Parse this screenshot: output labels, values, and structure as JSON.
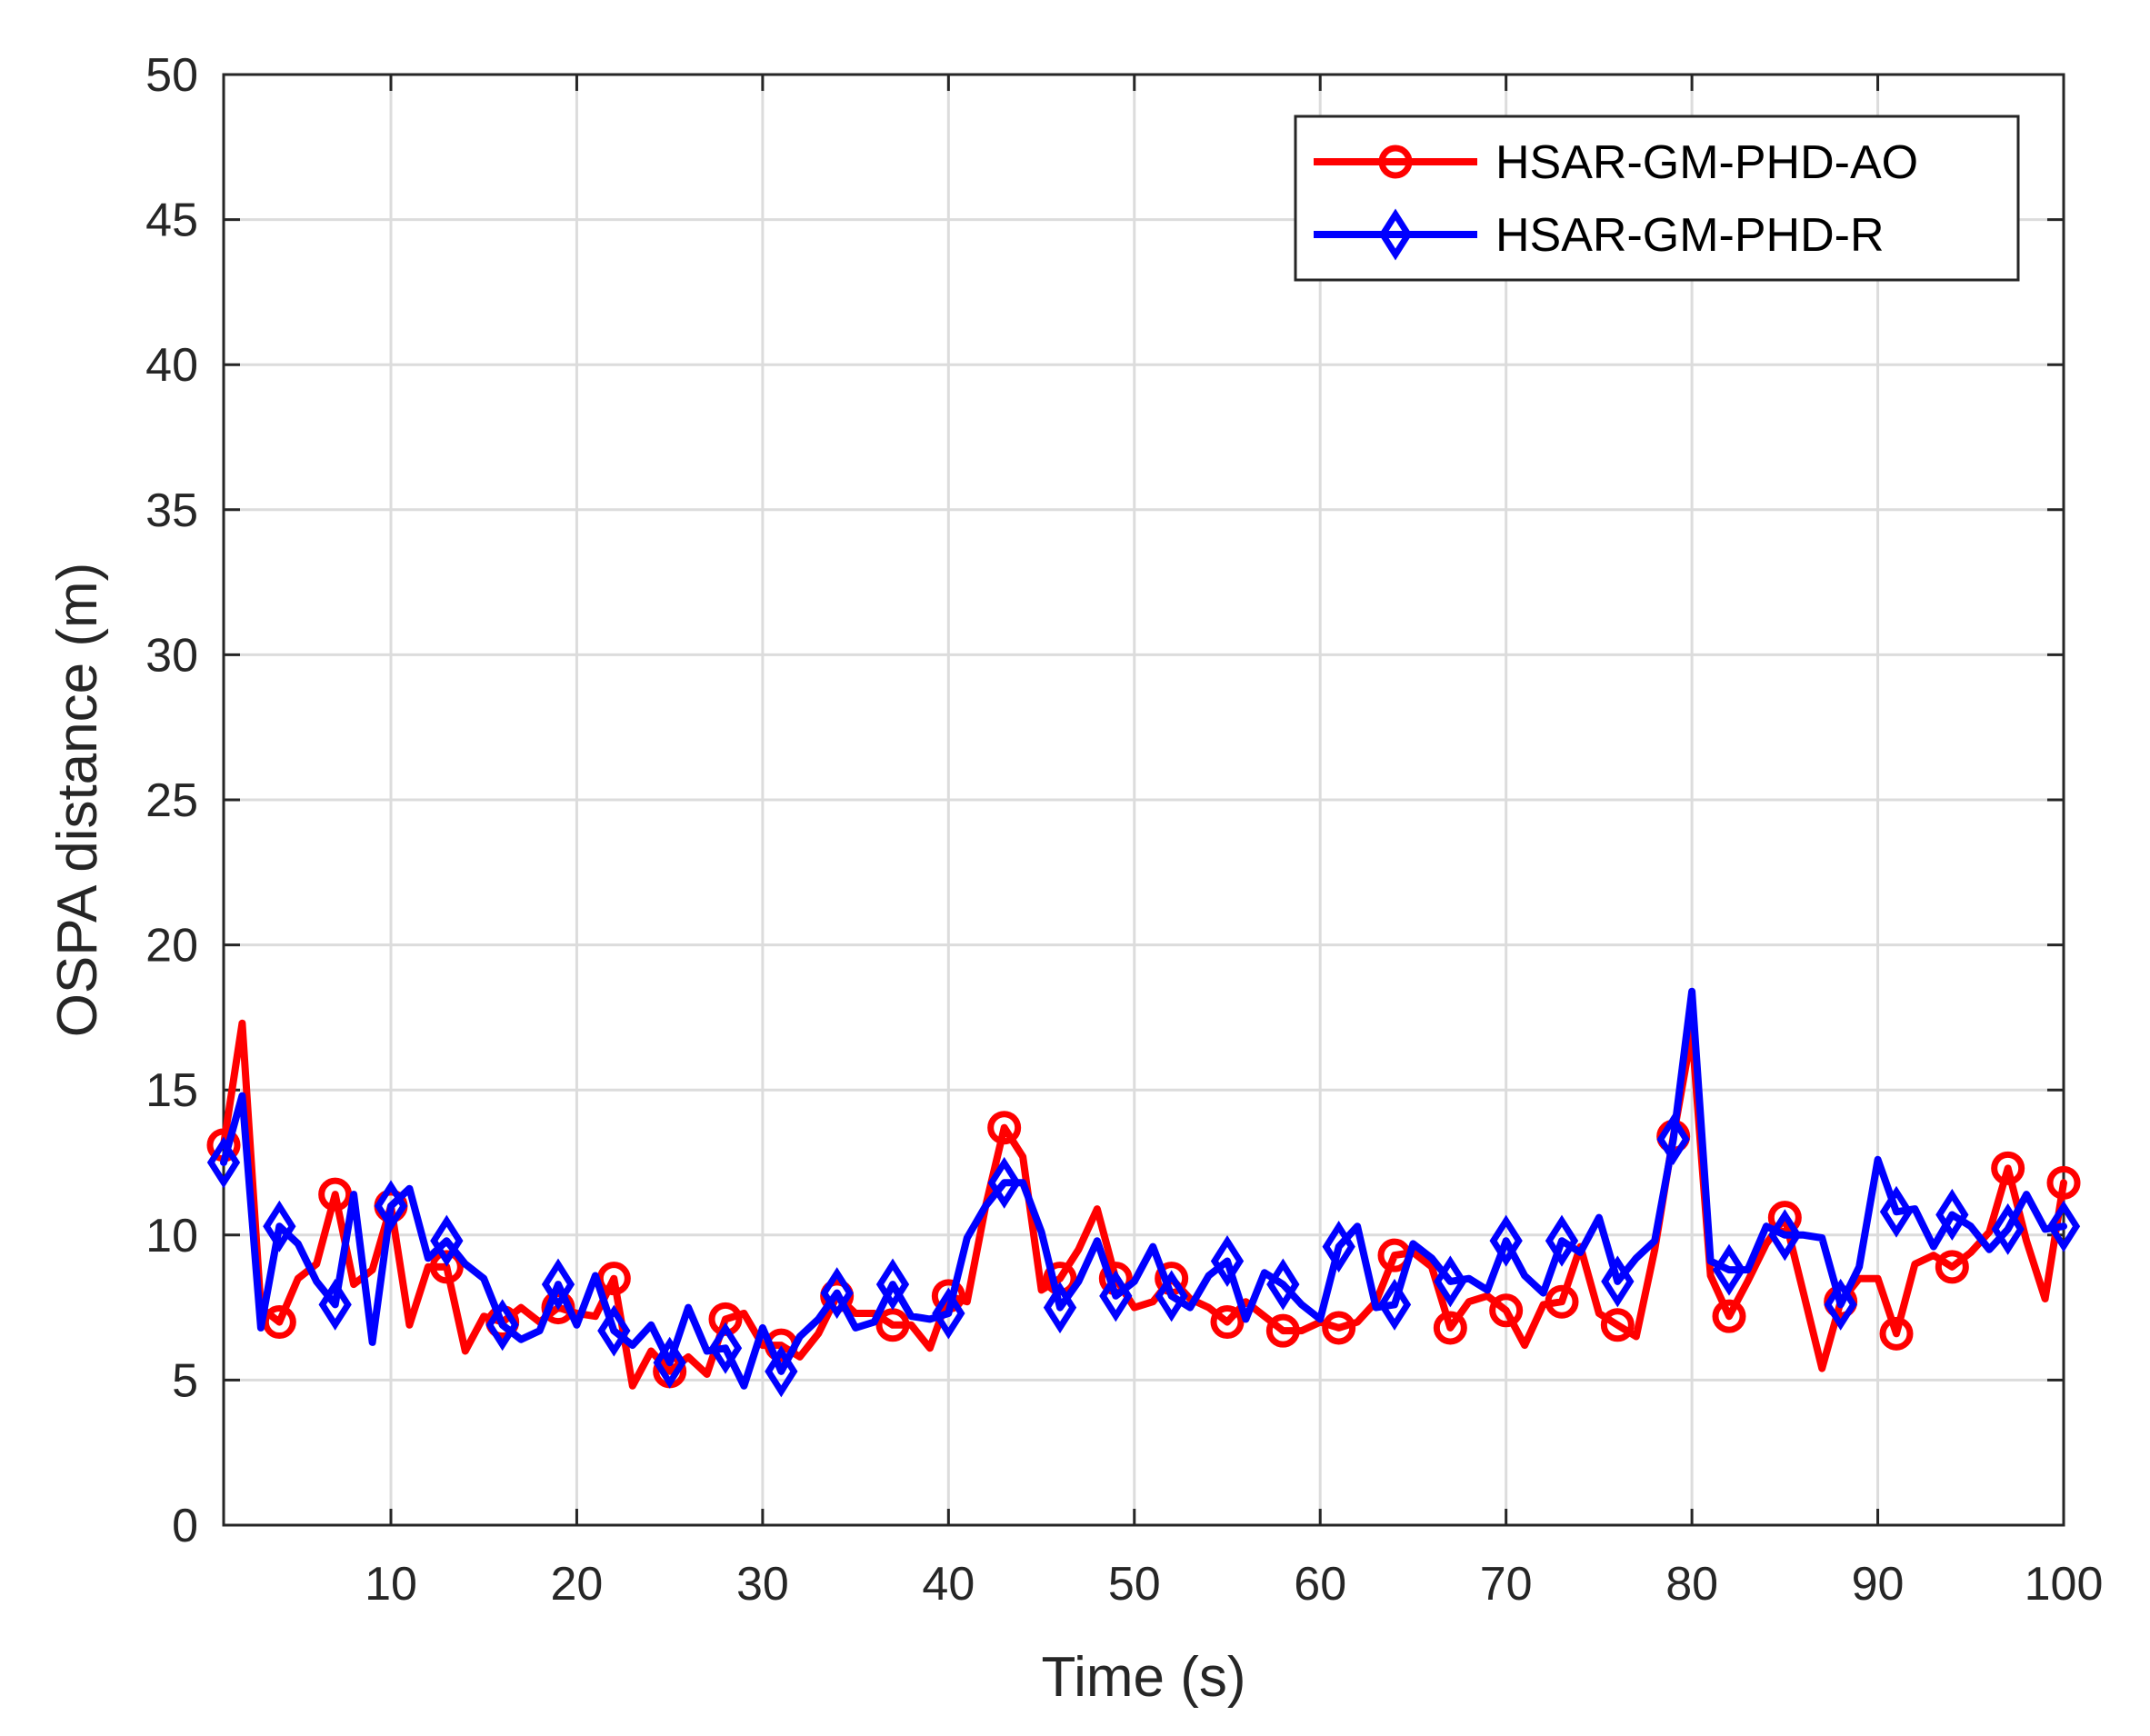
{
  "chart_data": {
    "type": "line",
    "title": "",
    "xlabel": "Time (s)",
    "ylabel": "OSPA distance (m)",
    "xlim": [
      1,
      100
    ],
    "ylim": [
      0,
      50
    ],
    "xticks": [
      10,
      20,
      30,
      40,
      50,
      60,
      70,
      80,
      90,
      100
    ],
    "yticks": [
      0,
      5,
      10,
      15,
      20,
      25,
      30,
      35,
      40,
      45,
      50
    ],
    "grid": true,
    "legend_position": "top-right",
    "x": [
      1,
      2,
      3,
      4,
      5,
      6,
      7,
      8,
      9,
      10,
      11,
      12,
      13,
      14,
      15,
      16,
      17,
      18,
      19,
      20,
      21,
      22,
      23,
      24,
      25,
      26,
      27,
      28,
      29,
      30,
      31,
      32,
      33,
      34,
      35,
      36,
      37,
      38,
      39,
      40,
      41,
      42,
      43,
      44,
      45,
      46,
      47,
      48,
      49,
      50,
      51,
      52,
      53,
      54,
      55,
      56,
      57,
      58,
      59,
      60,
      61,
      62,
      63,
      64,
      65,
      66,
      67,
      68,
      69,
      70,
      71,
      72,
      73,
      74,
      75,
      76,
      77,
      78,
      79,
      80,
      81,
      82,
      83,
      84,
      85,
      86,
      87,
      88,
      89,
      90,
      91,
      92,
      93,
      94,
      95,
      96,
      97,
      98,
      99,
      100
    ],
    "series": [
      {
        "name": "HSAR-GM-PHD-AO",
        "color": "#ff0000",
        "marker": "circle",
        "marker_every": 3,
        "values": [
          13.1,
          17.3,
          7.5,
          7.0,
          8.5,
          9.0,
          11.4,
          8.3,
          8.8,
          11.0,
          6.9,
          8.9,
          8.9,
          6.0,
          7.2,
          7.0,
          7.5,
          7.0,
          7.5,
          7.3,
          7.2,
          8.5,
          4.8,
          6.0,
          5.3,
          5.8,
          5.2,
          7.1,
          7.3,
          6.2,
          6.2,
          5.8,
          6.6,
          7.9,
          7.3,
          7.3,
          6.9,
          6.9,
          6.1,
          7.9,
          7.7,
          11.0,
          13.7,
          12.7,
          8.1,
          8.5,
          9.5,
          10.9,
          8.5,
          7.5,
          7.7,
          8.5,
          7.8,
          7.5,
          7.0,
          7.7,
          7.2,
          6.7,
          6.7,
          7.0,
          6.8,
          7.0,
          7.7,
          9.3,
          9.4,
          8.9,
          6.8,
          7.7,
          7.9,
          7.4,
          6.2,
          7.6,
          7.7,
          9.6,
          7.3,
          6.9,
          6.5,
          9.5,
          13.4,
          17.0,
          8.6,
          7.2,
          8.4,
          9.7,
          10.6,
          8.0,
          5.4,
          7.7,
          8.5,
          8.5,
          6.6,
          9.0,
          9.3,
          8.9,
          9.4,
          10.1,
          12.3,
          9.8,
          7.8,
          11.8
        ]
      },
      {
        "name": "HSAR-GM-PHD-R",
        "color": "#0000ff",
        "marker": "diamond",
        "marker_every": 3,
        "values": [
          12.5,
          14.8,
          6.8,
          10.3,
          9.7,
          8.4,
          7.6,
          11.4,
          6.3,
          11.0,
          11.6,
          9.2,
          9.8,
          9.0,
          8.5,
          6.9,
          6.4,
          6.7,
          8.3,
          6.9,
          8.6,
          6.7,
          6.2,
          6.9,
          5.6,
          7.5,
          6.0,
          6.1,
          4.8,
          6.8,
          5.3,
          6.5,
          7.1,
          8.0,
          6.8,
          7.0,
          8.3,
          7.2,
          7.1,
          7.3,
          9.9,
          11.0,
          11.8,
          11.8,
          10.1,
          7.5,
          8.4,
          9.8,
          7.9,
          8.4,
          9.6,
          7.9,
          7.5,
          8.6,
          9.1,
          7.1,
          8.7,
          8.3,
          7.6,
          7.1,
          9.6,
          10.3,
          7.5,
          7.6,
          9.7,
          9.2,
          8.4,
          8.5,
          8.1,
          9.8,
          8.6,
          8.0,
          9.8,
          9.4,
          10.6,
          8.4,
          9.2,
          9.8,
          13.3,
          18.4,
          9.1,
          8.8,
          8.8,
          10.3,
          10.0,
          10.0,
          9.9,
          7.6,
          8.9,
          12.6,
          10.8,
          10.9,
          9.6,
          10.7,
          10.3,
          9.5,
          10.2,
          11.4,
          10.2,
          10.3
        ]
      }
    ]
  }
}
